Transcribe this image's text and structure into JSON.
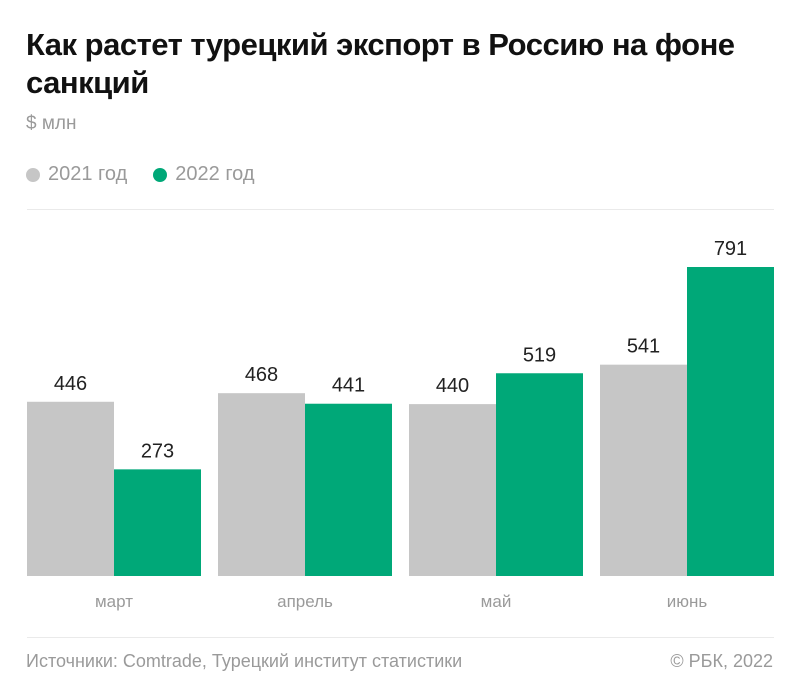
{
  "title": "Как растет турецкий экспорт в Россию на фоне санкций",
  "unit": "$ млн",
  "footer": {
    "source": "Источники: Comtrade, Турецкий институт статистики",
    "copyright": "© РБК, 2022"
  },
  "chart_data": {
    "type": "bar",
    "title": "Как растет турецкий экспорт в Россию на фоне санкций",
    "ylabel": "$ млн",
    "categories": [
      "март",
      "апрель",
      "май",
      "июнь"
    ],
    "series": [
      {
        "name": "2021 год",
        "color": "#c6c6c6",
        "values": [
          446,
          468,
          440,
          541
        ]
      },
      {
        "name": "2022 год",
        "color": "#00a878",
        "values": [
          273,
          441,
          519,
          791
        ]
      }
    ],
    "ylim": [
      0,
      791
    ],
    "grid": false,
    "legend": "top-left",
    "data_labels": true
  }
}
